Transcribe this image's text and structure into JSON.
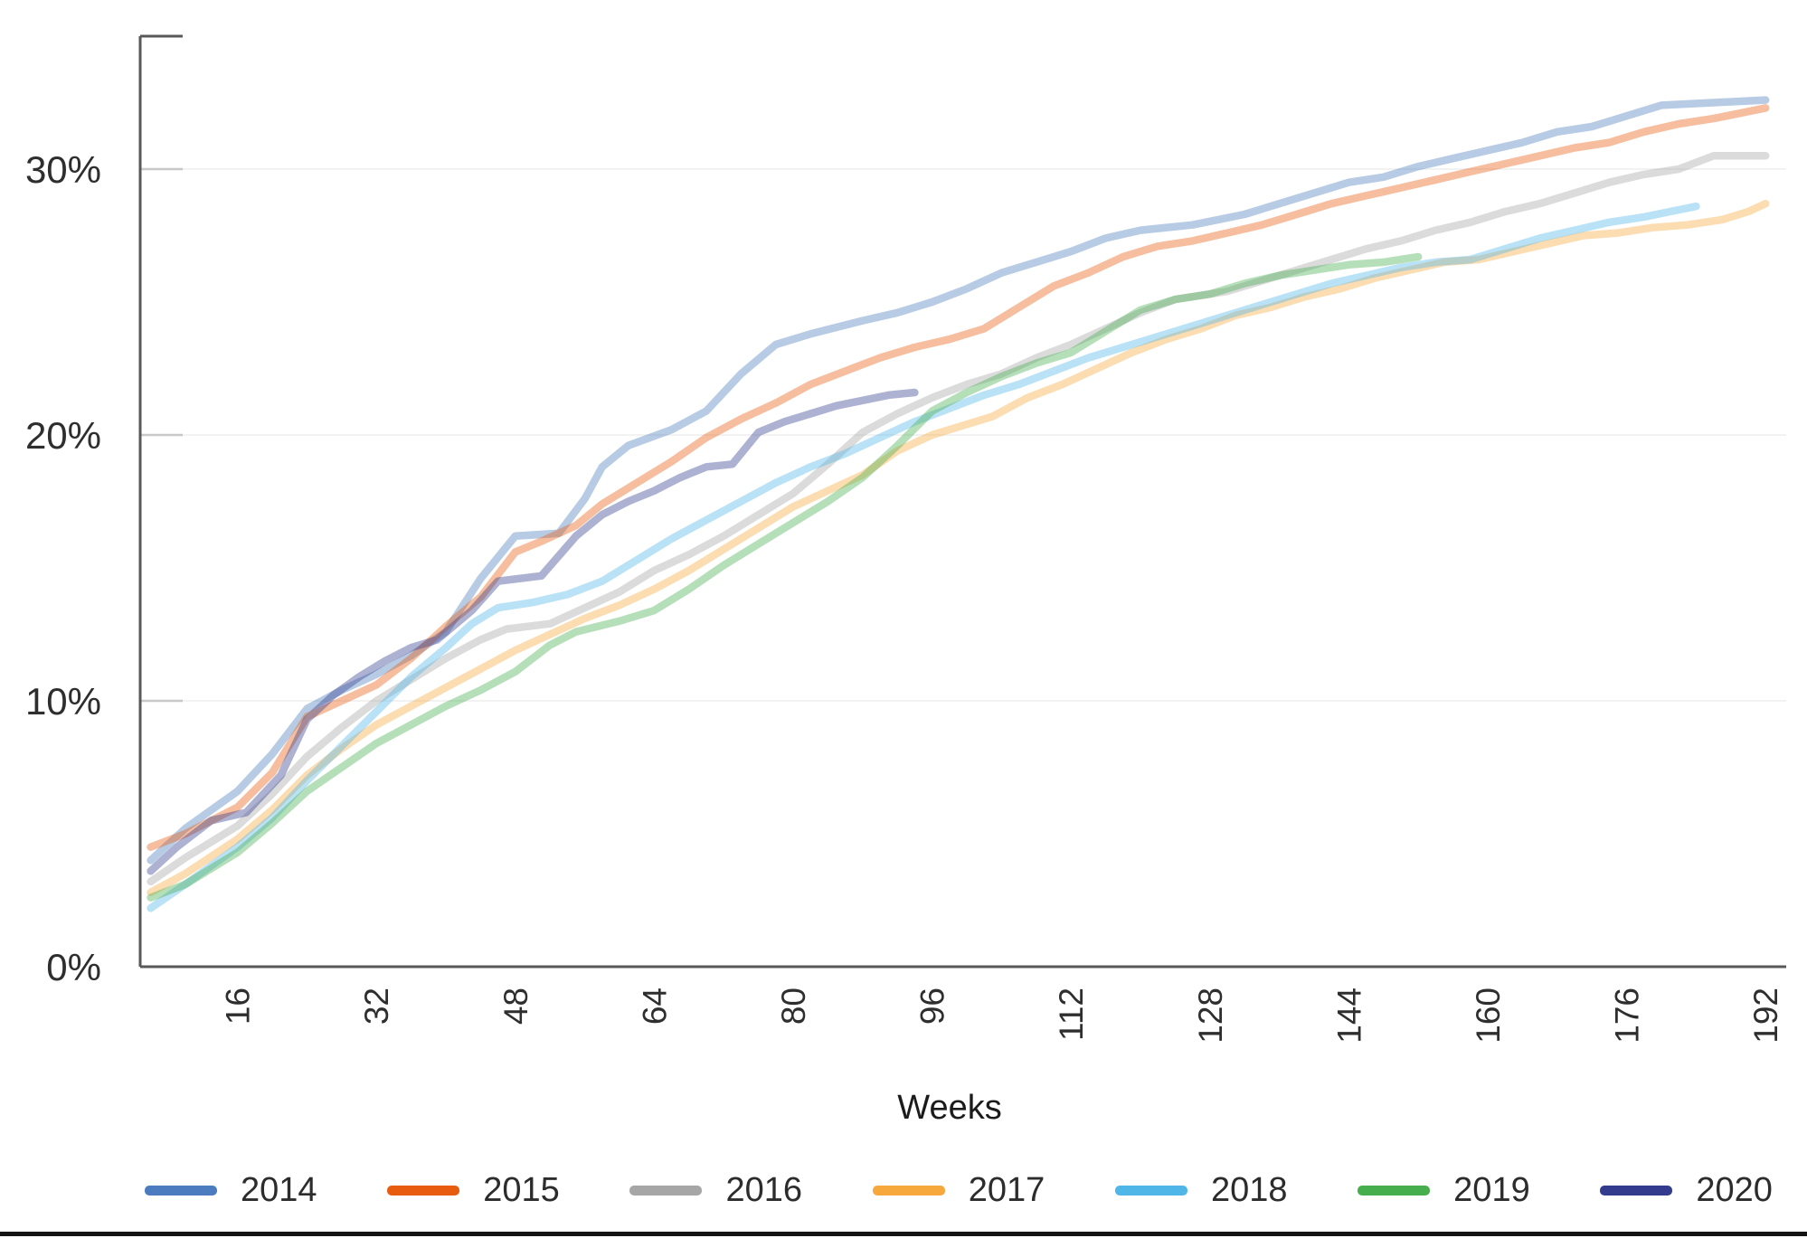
{
  "page": {
    "background": "#ffffff",
    "bottom_rule_color": "#141414",
    "axis_color": "#58585a",
    "grid_color": "#f2f2f2",
    "near_axis_tick_color": "#c8c8c8",
    "label_color": "#2e2e2e"
  },
  "chart_data": {
    "type": "line",
    "title": "",
    "xlabel": "Weeks",
    "ylabel": "",
    "x_axis": {
      "tick_weeks": [
        16,
        32,
        48,
        64,
        80,
        96,
        112,
        128,
        144,
        160,
        176,
        192
      ],
      "tick_labels": [
        "16",
        "32",
        "48",
        "64",
        "80",
        "96",
        "112",
        "128",
        "144",
        "160",
        "176",
        "192"
      ],
      "min_week": 5,
      "max_week": 194,
      "label_rotation_deg": -90
    },
    "y_axis": {
      "tick_values": [
        0,
        10,
        20,
        30
      ],
      "tick_labels": [
        "0%",
        "10%",
        "20%",
        "30%"
      ],
      "min": 0,
      "max": 35,
      "unit": "percent"
    },
    "grid": {
      "horizontal": true,
      "vertical": false
    },
    "legend_position": "bottom",
    "line_opacity": 0.4,
    "line_width": 8.5,
    "series": [
      {
        "name": "2014",
        "color": "#4C7CBF",
        "points": [
          [
            6,
            4.0
          ],
          [
            10,
            5.2
          ],
          [
            16,
            6.6
          ],
          [
            20,
            8.0
          ],
          [
            24,
            9.7
          ],
          [
            28,
            10.4
          ],
          [
            32,
            11.0
          ],
          [
            36,
            11.7
          ],
          [
            40,
            12.6
          ],
          [
            44,
            14.6
          ],
          [
            48,
            16.2
          ],
          [
            53,
            16.3
          ],
          [
            56,
            17.6
          ],
          [
            58,
            18.8
          ],
          [
            61,
            19.6
          ],
          [
            66,
            20.2
          ],
          [
            70,
            20.9
          ],
          [
            74,
            22.3
          ],
          [
            78,
            23.4
          ],
          [
            82,
            23.8
          ],
          [
            88,
            24.3
          ],
          [
            92,
            24.6
          ],
          [
            96,
            25.0
          ],
          [
            100,
            25.5
          ],
          [
            104,
            26.1
          ],
          [
            108,
            26.5
          ],
          [
            112,
            26.9
          ],
          [
            116,
            27.4
          ],
          [
            120,
            27.7
          ],
          [
            126,
            27.9
          ],
          [
            132,
            28.3
          ],
          [
            138,
            28.9
          ],
          [
            144,
            29.5
          ],
          [
            148,
            29.7
          ],
          [
            152,
            30.1
          ],
          [
            156,
            30.4
          ],
          [
            160,
            30.7
          ],
          [
            164,
            31.0
          ],
          [
            168,
            31.4
          ],
          [
            172,
            31.6
          ],
          [
            176,
            32.0
          ],
          [
            180,
            32.4
          ],
          [
            186,
            32.5
          ],
          [
            192,
            32.6
          ]
        ]
      },
      {
        "name": "2015",
        "color": "#E85C0F",
        "points": [
          [
            6,
            4.5
          ],
          [
            10,
            5.0
          ],
          [
            16,
            6.0
          ],
          [
            20,
            7.3
          ],
          [
            24,
            9.4
          ],
          [
            28,
            10.0
          ],
          [
            32,
            10.6
          ],
          [
            36,
            11.6
          ],
          [
            40,
            12.8
          ],
          [
            44,
            13.9
          ],
          [
            48,
            15.6
          ],
          [
            51,
            16.0
          ],
          [
            55,
            16.6
          ],
          [
            58,
            17.4
          ],
          [
            62,
            18.2
          ],
          [
            66,
            19.0
          ],
          [
            70,
            19.9
          ],
          [
            74,
            20.6
          ],
          [
            78,
            21.2
          ],
          [
            82,
            21.9
          ],
          [
            86,
            22.4
          ],
          [
            90,
            22.9
          ],
          [
            94,
            23.3
          ],
          [
            98,
            23.6
          ],
          [
            102,
            24.0
          ],
          [
            106,
            24.8
          ],
          [
            110,
            25.6
          ],
          [
            114,
            26.1
          ],
          [
            118,
            26.7
          ],
          [
            122,
            27.1
          ],
          [
            126,
            27.3
          ],
          [
            130,
            27.6
          ],
          [
            134,
            27.9
          ],
          [
            138,
            28.3
          ],
          [
            142,
            28.7
          ],
          [
            146,
            29.0
          ],
          [
            150,
            29.3
          ],
          [
            154,
            29.6
          ],
          [
            158,
            29.9
          ],
          [
            162,
            30.2
          ],
          [
            166,
            30.5
          ],
          [
            170,
            30.8
          ],
          [
            174,
            31.0
          ],
          [
            178,
            31.4
          ],
          [
            182,
            31.7
          ],
          [
            186,
            31.9
          ],
          [
            189,
            32.1
          ],
          [
            192,
            32.3
          ]
        ]
      },
      {
        "name": "2016",
        "color": "#A6A6A6",
        "points": [
          [
            6,
            3.2
          ],
          [
            10,
            4.1
          ],
          [
            16,
            5.3
          ],
          [
            20,
            6.5
          ],
          [
            24,
            7.9
          ],
          [
            28,
            9.0
          ],
          [
            32,
            10.0
          ],
          [
            36,
            10.8
          ],
          [
            40,
            11.6
          ],
          [
            44,
            12.3
          ],
          [
            47,
            12.7
          ],
          [
            52,
            12.9
          ],
          [
            56,
            13.5
          ],
          [
            60,
            14.1
          ],
          [
            64,
            14.9
          ],
          [
            68,
            15.5
          ],
          [
            72,
            16.2
          ],
          [
            76,
            17.0
          ],
          [
            80,
            17.8
          ],
          [
            84,
            18.9
          ],
          [
            88,
            20.1
          ],
          [
            92,
            20.8
          ],
          [
            96,
            21.4
          ],
          [
            100,
            21.9
          ],
          [
            104,
            22.3
          ],
          [
            108,
            22.9
          ],
          [
            112,
            23.4
          ],
          [
            116,
            24.0
          ],
          [
            120,
            24.6
          ],
          [
            124,
            25.1
          ],
          [
            130,
            25.4
          ],
          [
            134,
            25.8
          ],
          [
            138,
            26.2
          ],
          [
            142,
            26.6
          ],
          [
            146,
            27.0
          ],
          [
            150,
            27.3
          ],
          [
            154,
            27.7
          ],
          [
            158,
            28.0
          ],
          [
            162,
            28.4
          ],
          [
            166,
            28.7
          ],
          [
            170,
            29.1
          ],
          [
            174,
            29.5
          ],
          [
            178,
            29.8
          ],
          [
            182,
            30.0
          ],
          [
            186,
            30.5
          ],
          [
            192,
            30.5
          ]
        ]
      },
      {
        "name": "2017",
        "color": "#F7A83C",
        "points": [
          [
            6,
            2.8
          ],
          [
            10,
            3.5
          ],
          [
            16,
            4.8
          ],
          [
            20,
            5.9
          ],
          [
            24,
            7.2
          ],
          [
            28,
            8.2
          ],
          [
            32,
            9.1
          ],
          [
            36,
            9.8
          ],
          [
            40,
            10.5
          ],
          [
            44,
            11.2
          ],
          [
            48,
            11.9
          ],
          [
            52,
            12.5
          ],
          [
            56,
            13.1
          ],
          [
            60,
            13.6
          ],
          [
            64,
            14.2
          ],
          [
            68,
            14.9
          ],
          [
            72,
            15.7
          ],
          [
            76,
            16.5
          ],
          [
            80,
            17.3
          ],
          [
            84,
            17.9
          ],
          [
            88,
            18.5
          ],
          [
            92,
            19.4
          ],
          [
            96,
            20.0
          ],
          [
            99,
            20.3
          ],
          [
            103,
            20.7
          ],
          [
            107,
            21.4
          ],
          [
            111,
            21.9
          ],
          [
            115,
            22.5
          ],
          [
            119,
            23.1
          ],
          [
            123,
            23.6
          ],
          [
            127,
            24.0
          ],
          [
            131,
            24.5
          ],
          [
            135,
            24.8
          ],
          [
            139,
            25.2
          ],
          [
            143,
            25.5
          ],
          [
            147,
            25.9
          ],
          [
            151,
            26.2
          ],
          [
            155,
            26.5
          ],
          [
            159,
            26.6
          ],
          [
            163,
            26.9
          ],
          [
            167,
            27.2
          ],
          [
            171,
            27.5
          ],
          [
            175,
            27.6
          ],
          [
            179,
            27.8
          ],
          [
            183,
            27.9
          ],
          [
            187,
            28.1
          ],
          [
            190,
            28.4
          ],
          [
            192,
            28.7
          ]
        ]
      },
      {
        "name": "2018",
        "color": "#50B6E8",
        "points": [
          [
            6,
            2.2
          ],
          [
            10,
            3.1
          ],
          [
            16,
            4.5
          ],
          [
            20,
            5.6
          ],
          [
            24,
            7.0
          ],
          [
            28,
            8.3
          ],
          [
            32,
            9.6
          ],
          [
            36,
            10.9
          ],
          [
            40,
            12.0
          ],
          [
            43,
            12.9
          ],
          [
            46,
            13.5
          ],
          [
            50,
            13.7
          ],
          [
            54,
            14.0
          ],
          [
            58,
            14.5
          ],
          [
            62,
            15.3
          ],
          [
            66,
            16.1
          ],
          [
            70,
            16.8
          ],
          [
            74,
            17.5
          ],
          [
            78,
            18.2
          ],
          [
            82,
            18.8
          ],
          [
            86,
            19.3
          ],
          [
            90,
            19.9
          ],
          [
            94,
            20.5
          ],
          [
            98,
            21.0
          ],
          [
            102,
            21.5
          ],
          [
            106,
            21.9
          ],
          [
            110,
            22.4
          ],
          [
            114,
            22.9
          ],
          [
            118,
            23.3
          ],
          [
            122,
            23.7
          ],
          [
            126,
            24.1
          ],
          [
            130,
            24.5
          ],
          [
            134,
            24.9
          ],
          [
            138,
            25.3
          ],
          [
            142,
            25.7
          ],
          [
            146,
            26.0
          ],
          [
            150,
            26.3
          ],
          [
            154,
            26.5
          ],
          [
            158,
            26.6
          ],
          [
            162,
            27.0
          ],
          [
            166,
            27.4
          ],
          [
            170,
            27.7
          ],
          [
            174,
            28.0
          ],
          [
            178,
            28.2
          ],
          [
            181,
            28.4
          ],
          [
            184,
            28.6
          ]
        ]
      },
      {
        "name": "2019",
        "color": "#47AE4D",
        "points": [
          [
            6,
            2.6
          ],
          [
            10,
            3.1
          ],
          [
            16,
            4.3
          ],
          [
            20,
            5.4
          ],
          [
            24,
            6.6
          ],
          [
            28,
            7.5
          ],
          [
            32,
            8.4
          ],
          [
            36,
            9.1
          ],
          [
            40,
            9.8
          ],
          [
            44,
            10.4
          ],
          [
            48,
            11.1
          ],
          [
            52,
            12.1
          ],
          [
            55,
            12.6
          ],
          [
            60,
            13.0
          ],
          [
            64,
            13.4
          ],
          [
            68,
            14.2
          ],
          [
            72,
            15.1
          ],
          [
            76,
            15.9
          ],
          [
            80,
            16.7
          ],
          [
            84,
            17.5
          ],
          [
            88,
            18.4
          ],
          [
            92,
            19.6
          ],
          [
            96,
            20.9
          ],
          [
            100,
            21.6
          ],
          [
            104,
            22.2
          ],
          [
            108,
            22.7
          ],
          [
            112,
            23.1
          ],
          [
            116,
            23.9
          ],
          [
            120,
            24.7
          ],
          [
            124,
            25.1
          ],
          [
            128,
            25.3
          ],
          [
            132,
            25.7
          ],
          [
            136,
            26.0
          ],
          [
            140,
            26.2
          ],
          [
            144,
            26.4
          ],
          [
            148,
            26.5
          ],
          [
            152,
            26.7
          ]
        ]
      },
      {
        "name": "2020",
        "color": "#333B8F",
        "points": [
          [
            6,
            3.6
          ],
          [
            9,
            4.5
          ],
          [
            13,
            5.5
          ],
          [
            17,
            5.8
          ],
          [
            21,
            7.2
          ],
          [
            24,
            9.3
          ],
          [
            27,
            10.2
          ],
          [
            30,
            10.9
          ],
          [
            33,
            11.5
          ],
          [
            36,
            12.0
          ],
          [
            39,
            12.3
          ],
          [
            43,
            13.4
          ],
          [
            46,
            14.5
          ],
          [
            51,
            14.7
          ],
          [
            55,
            16.2
          ],
          [
            58,
            17.0
          ],
          [
            61,
            17.5
          ],
          [
            64,
            17.9
          ],
          [
            67,
            18.4
          ],
          [
            70,
            18.8
          ],
          [
            73,
            18.9
          ],
          [
            76,
            20.1
          ],
          [
            79,
            20.5
          ],
          [
            82,
            20.8
          ],
          [
            85,
            21.1
          ],
          [
            88,
            21.3
          ],
          [
            91,
            21.5
          ],
          [
            94,
            21.6
          ]
        ]
      }
    ]
  }
}
